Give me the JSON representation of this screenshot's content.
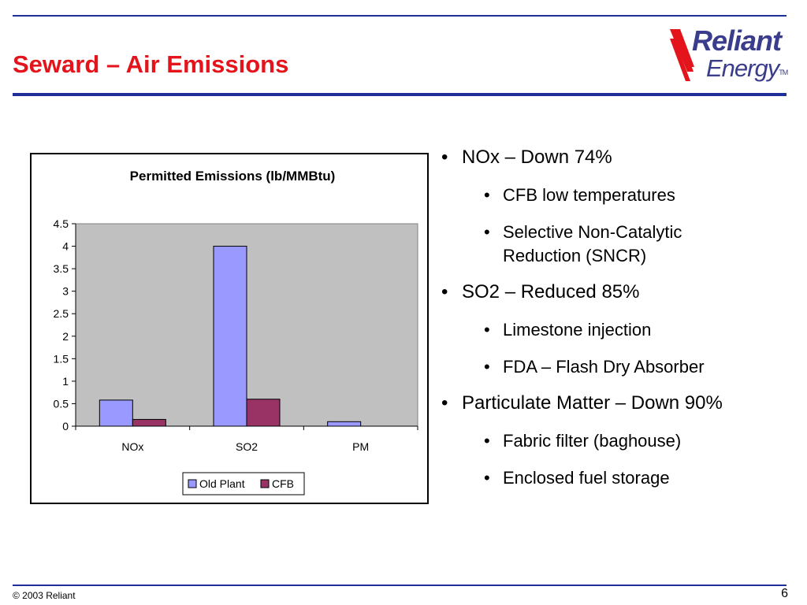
{
  "slide": {
    "title": "Seward – Air Emissions",
    "footer": "© 2003 Reliant",
    "page_number": "6"
  },
  "logo": {
    "line1": "Reliant",
    "line2": "Energy",
    "tm": "TM",
    "color": "#3a3c8c",
    "mark_color": "#e3141b"
  },
  "colors": {
    "title": "#e3141b",
    "rules": "#1f2f9a",
    "plot_area": "#c0c0c0",
    "old_plant": "#9999ff",
    "cfb": "#993366"
  },
  "bullets": [
    {
      "text": "NOx – Down 74%",
      "sub": [
        "CFB low temperatures",
        "Selective Non-Catalytic",
        "Reduction (SNCR)"
      ]
    },
    {
      "text": "SO2 – Reduced 85%",
      "sub": [
        "Limestone injection",
        "FDA – Flash Dry Absorber"
      ]
    },
    {
      "text": "Particulate Matter – Down 90%",
      "sub": [
        "Fabric filter (baghouse)",
        "Enclosed fuel storage"
      ]
    }
  ],
  "chart_data": {
    "type": "bar",
    "title": "Permitted Emissions (lb/MMBtu)",
    "categories": [
      "NOx",
      "SO2",
      "PM"
    ],
    "series": [
      {
        "name": "Old Plant",
        "color": "#9999ff",
        "values": [
          0.58,
          4.0,
          0.1
        ]
      },
      {
        "name": "CFB",
        "color": "#993366",
        "values": [
          0.15,
          0.6,
          0.0
        ]
      }
    ],
    "ylim": [
      0,
      4.5
    ],
    "yticks": [
      "0",
      "0.5",
      "1",
      "1.5",
      "2",
      "2.5",
      "3",
      "3.5",
      "4",
      "4.5"
    ],
    "grid": false,
    "legend": "bottom"
  }
}
